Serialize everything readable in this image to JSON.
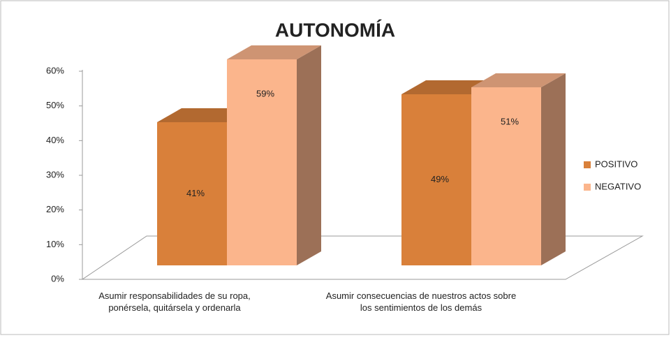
{
  "chart_data": {
    "type": "bar3d",
    "title": "AUTONOMÍA",
    "categories": [
      "Asumir responsabilidades de su ropa, ponérsela, quitársela y ordenarla",
      "Asumir consecuencias de nuestros actos sobre los sentimientos de los demás"
    ],
    "series": [
      {
        "name": "POSITIVO",
        "color": "#d9803a",
        "values": [
          41,
          49
        ],
        "value_labels": [
          "41%",
          "49%"
        ]
      },
      {
        "name": "NEGATIVO",
        "color": "#fbb58c",
        "values": [
          59,
          51
        ],
        "value_labels": [
          "59%",
          "51%"
        ]
      }
    ],
    "ylim": [
      0,
      60
    ],
    "yticks": [
      {
        "value": 0,
        "label": "0%"
      },
      {
        "value": 10,
        "label": "10%"
      },
      {
        "value": 20,
        "label": "20%"
      },
      {
        "value": 30,
        "label": "30%"
      },
      {
        "value": 40,
        "label": "40%"
      },
      {
        "value": 50,
        "label": "50%"
      },
      {
        "value": 60,
        "label": "60%"
      }
    ],
    "legend": "right"
  }
}
